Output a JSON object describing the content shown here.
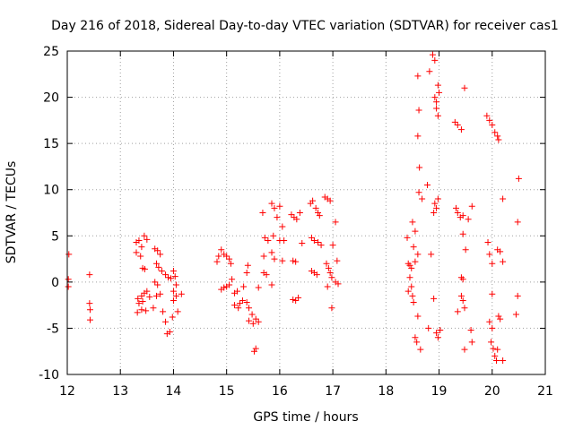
{
  "chart_data": {
    "type": "scatter",
    "title": "Day 216 of 2018, Sidereal Day-to-day VTEC variation (SDTVAR) for receiver cas1",
    "xlabel": "GPS time / hours",
    "ylabel": "SDTVAR / TECUs",
    "xlim": [
      12,
      21
    ],
    "ylim": [
      -10,
      25
    ],
    "xticks": [
      12,
      13,
      14,
      15,
      16,
      17,
      18,
      19,
      20,
      21
    ],
    "yticks": [
      -10,
      -5,
      0,
      5,
      10,
      15,
      20,
      25
    ],
    "xtick_labels": [
      "12",
      "13",
      "14",
      "15",
      "16",
      "17",
      "18",
      "19",
      "20",
      "21"
    ],
    "ytick_labels": [
      "-10",
      "-5",
      "0",
      "5",
      "10",
      "15",
      "20",
      "25"
    ],
    "grid": true,
    "marker": "+",
    "series": [
      {
        "name": "cas1",
        "color": "#ff0000",
        "points": [
          [
            12.03,
            3.0
          ],
          [
            12.02,
            0.3
          ],
          [
            12.02,
            -0.5
          ],
          [
            12.42,
            0.8
          ],
          [
            12.42,
            -2.3
          ],
          [
            12.43,
            -3.0
          ],
          [
            12.43,
            -4.1
          ],
          [
            13.3,
            4.3
          ],
          [
            13.35,
            4.5
          ],
          [
            13.4,
            3.8
          ],
          [
            13.45,
            5.0
          ],
          [
            13.5,
            4.6
          ],
          [
            13.3,
            3.2
          ],
          [
            13.38,
            2.8
          ],
          [
            13.42,
            1.5
          ],
          [
            13.46,
            1.4
          ],
          [
            13.33,
            -1.8
          ],
          [
            13.4,
            -1.5
          ],
          [
            13.45,
            -1.2
          ],
          [
            13.5,
            -1.0
          ],
          [
            13.55,
            -1.6
          ],
          [
            13.35,
            -2.3
          ],
          [
            13.42,
            -2.1
          ],
          [
            13.32,
            -3.3
          ],
          [
            13.4,
            -3.0
          ],
          [
            13.48,
            -3.1
          ],
          [
            13.65,
            3.6
          ],
          [
            13.7,
            3.4
          ],
          [
            13.75,
            3.0
          ],
          [
            13.68,
            2.0
          ],
          [
            13.72,
            1.6
          ],
          [
            13.78,
            1.2
          ],
          [
            13.85,
            0.8
          ],
          [
            13.9,
            0.5
          ],
          [
            13.95,
            0.4
          ],
          [
            13.65,
            0.0
          ],
          [
            13.7,
            -0.3
          ],
          [
            13.75,
            -1.3
          ],
          [
            13.68,
            -1.5
          ],
          [
            13.62,
            -2.8
          ],
          [
            13.8,
            -3.2
          ],
          [
            13.85,
            -4.3
          ],
          [
            13.88,
            -5.6
          ],
          [
            13.93,
            -5.4
          ],
          [
            14.0,
            1.2
          ],
          [
            14.03,
            0.6
          ],
          [
            14.05,
            -0.3
          ],
          [
            14.0,
            -1.0
          ],
          [
            14.05,
            -1.5
          ],
          [
            14.0,
            -2.0
          ],
          [
            14.08,
            -3.2
          ],
          [
            13.98,
            -3.8
          ],
          [
            14.15,
            -1.3
          ],
          [
            14.82,
            2.2
          ],
          [
            14.85,
            2.8
          ],
          [
            14.9,
            3.5
          ],
          [
            14.95,
            3.0
          ],
          [
            15.0,
            2.8
          ],
          [
            15.05,
            2.5
          ],
          [
            15.08,
            2.0
          ],
          [
            14.9,
            -0.8
          ],
          [
            14.95,
            -0.6
          ],
          [
            15.0,
            -0.5
          ],
          [
            15.05,
            -0.3
          ],
          [
            15.1,
            0.3
          ],
          [
            15.15,
            -1.2
          ],
          [
            15.2,
            -1.0
          ],
          [
            15.15,
            -2.5
          ],
          [
            15.22,
            -2.8
          ],
          [
            15.25,
            -2.3
          ],
          [
            15.3,
            -2.0
          ],
          [
            15.38,
            -2.2
          ],
          [
            15.42,
            -2.8
          ],
          [
            15.48,
            -3.5
          ],
          [
            15.4,
            1.8
          ],
          [
            15.38,
            1.0
          ],
          [
            15.32,
            -0.5
          ],
          [
            15.42,
            -4.2
          ],
          [
            15.5,
            -4.5
          ],
          [
            15.55,
            -4.0
          ],
          [
            15.6,
            -4.3
          ],
          [
            15.55,
            -7.2
          ],
          [
            15.52,
            -7.5
          ],
          [
            15.6,
            -0.6
          ],
          [
            15.68,
            7.5
          ],
          [
            15.72,
            4.8
          ],
          [
            15.78,
            4.5
          ],
          [
            15.85,
            8.5
          ],
          [
            15.9,
            8.0
          ],
          [
            15.95,
            7.0
          ],
          [
            16.0,
            8.2
          ],
          [
            16.05,
            6.0
          ],
          [
            15.88,
            5.0
          ],
          [
            16.0,
            4.5
          ],
          [
            15.7,
            2.8
          ],
          [
            15.85,
            3.2
          ],
          [
            15.9,
            2.5
          ],
          [
            16.05,
            2.3
          ],
          [
            16.08,
            4.5
          ],
          [
            15.7,
            1.0
          ],
          [
            15.75,
            0.8
          ],
          [
            15.85,
            -0.3
          ],
          [
            16.22,
            7.3
          ],
          [
            16.27,
            7.0
          ],
          [
            16.32,
            6.8
          ],
          [
            16.38,
            7.5
          ],
          [
            16.25,
            2.3
          ],
          [
            16.3,
            2.2
          ],
          [
            16.42,
            4.2
          ],
          [
            16.25,
            -1.9
          ],
          [
            16.3,
            -2.0
          ],
          [
            16.35,
            -1.7
          ],
          [
            16.58,
            8.5
          ],
          [
            16.62,
            8.8
          ],
          [
            16.68,
            8.0
          ],
          [
            16.72,
            7.5
          ],
          [
            16.75,
            7.2
          ],
          [
            16.6,
            4.8
          ],
          [
            16.65,
            4.5
          ],
          [
            16.72,
            4.3
          ],
          [
            16.78,
            4.0
          ],
          [
            16.6,
            1.2
          ],
          [
            16.65,
            1.0
          ],
          [
            16.7,
            0.8
          ],
          [
            16.85,
            9.2
          ],
          [
            16.9,
            9.0
          ],
          [
            16.95,
            8.8
          ],
          [
            16.88,
            2.0
          ],
          [
            16.92,
            1.5
          ],
          [
            16.95,
            1.0
          ],
          [
            16.98,
            0.5
          ],
          [
            16.9,
            -0.5
          ],
          [
            17.0,
            4.0
          ],
          [
            17.05,
            6.5
          ],
          [
            17.08,
            2.3
          ],
          [
            17.05,
            0.0
          ],
          [
            17.1,
            -0.2
          ],
          [
            16.98,
            -2.8
          ],
          [
            18.4,
            4.8
          ],
          [
            18.42,
            2.0
          ],
          [
            18.45,
            1.8
          ],
          [
            18.48,
            1.5
          ],
          [
            18.5,
            6.5
          ],
          [
            18.55,
            5.5
          ],
          [
            18.6,
            3.0
          ],
          [
            18.52,
            3.8
          ],
          [
            18.55,
            2.2
          ],
          [
            18.45,
            0.5
          ],
          [
            18.48,
            -0.5
          ],
          [
            18.5,
            -1.5
          ],
          [
            18.42,
            -1.0
          ],
          [
            18.52,
            -2.2
          ],
          [
            18.55,
            -6.0
          ],
          [
            18.58,
            -6.5
          ],
          [
            18.6,
            -3.7
          ],
          [
            18.65,
            -7.3
          ],
          [
            18.6,
            22.3
          ],
          [
            18.62,
            18.6
          ],
          [
            18.6,
            15.8
          ],
          [
            18.63,
            12.4
          ],
          [
            18.62,
            9.7
          ],
          [
            18.68,
            9.0
          ],
          [
            18.82,
            22.8
          ],
          [
            18.88,
            24.6
          ],
          [
            18.92,
            20.0
          ],
          [
            18.95,
            19.5
          ],
          [
            18.98,
            21.3
          ],
          [
            18.95,
            18.8
          ],
          [
            18.98,
            18.0
          ],
          [
            18.92,
            8.5
          ],
          [
            18.95,
            8.0
          ],
          [
            18.98,
            9.0
          ],
          [
            18.9,
            7.5
          ],
          [
            18.85,
            3.0
          ],
          [
            18.9,
            -1.8
          ],
          [
            18.8,
            -5.0
          ],
          [
            18.95,
            -5.5
          ],
          [
            18.98,
            -6.0
          ],
          [
            19.02,
            -5.2
          ],
          [
            18.78,
            10.5
          ],
          [
            18.92,
            24.0
          ],
          [
            19.0,
            20.5
          ],
          [
            19.3,
            17.3
          ],
          [
            19.35,
            17.0
          ],
          [
            19.42,
            16.5
          ],
          [
            19.48,
            21.0
          ],
          [
            19.32,
            8.0
          ],
          [
            19.35,
            7.5
          ],
          [
            19.4,
            7.0
          ],
          [
            19.45,
            7.2
          ],
          [
            19.55,
            6.8
          ],
          [
            19.62,
            8.2
          ],
          [
            19.45,
            5.2
          ],
          [
            19.5,
            3.5
          ],
          [
            19.42,
            0.5
          ],
          [
            19.45,
            0.3
          ],
          [
            19.42,
            -1.5
          ],
          [
            19.45,
            -2.0
          ],
          [
            19.35,
            -3.2
          ],
          [
            19.48,
            -2.8
          ],
          [
            19.48,
            -7.3
          ],
          [
            19.6,
            -5.2
          ],
          [
            19.62,
            -6.5
          ],
          [
            19.9,
            18.0
          ],
          [
            19.95,
            17.5
          ],
          [
            20.0,
            17.0
          ],
          [
            20.05,
            16.2
          ],
          [
            20.1,
            15.8
          ],
          [
            20.12,
            15.4
          ],
          [
            19.92,
            4.3
          ],
          [
            19.95,
            3.0
          ],
          [
            20.0,
            2.0
          ],
          [
            20.0,
            -1.3
          ],
          [
            19.95,
            -4.3
          ],
          [
            20.0,
            -5.0
          ],
          [
            19.98,
            -6.5
          ],
          [
            20.02,
            -7.2
          ],
          [
            20.05,
            -8.0
          ],
          [
            20.08,
            -8.5
          ],
          [
            20.1,
            -7.3
          ],
          [
            20.12,
            -3.7
          ],
          [
            20.1,
            3.5
          ],
          [
            20.15,
            3.3
          ],
          [
            20.2,
            9.0
          ],
          [
            20.2,
            2.2
          ],
          [
            20.15,
            -4.0
          ],
          [
            20.2,
            -8.5
          ],
          [
            20.5,
            11.2
          ],
          [
            20.48,
            6.5
          ],
          [
            20.48,
            -1.5
          ],
          [
            20.45,
            -3.5
          ]
        ]
      }
    ]
  }
}
